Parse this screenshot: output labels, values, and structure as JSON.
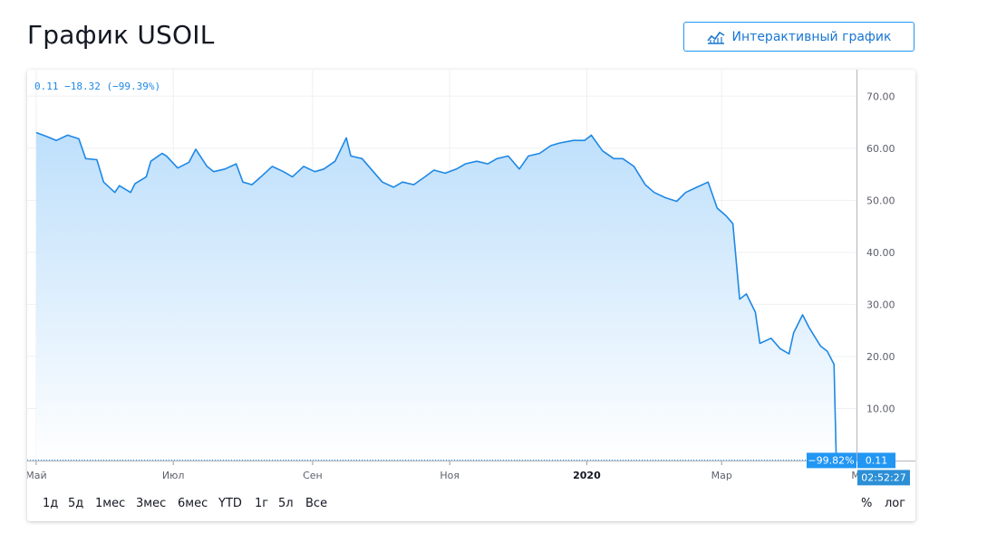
{
  "page": {
    "title": "График USOIL",
    "interactive_button": "Интерактивный график"
  },
  "chart_header": "0.11  −18.32 (−99.39%)",
  "range_buttons": [
    "1д",
    "5д",
    "1мес",
    "3мес",
    "6мес",
    "YTD",
    "1г",
    "5л",
    "Все"
  ],
  "toggles": [
    "%",
    "лог"
  ],
  "price_label": "0.11",
  "percent_label": "−99.82%",
  "time_label": "02:52:27",
  "colors": {
    "line": "#1e88e5",
    "accent": "#2196f3",
    "fill_top": "#bbdefb",
    "fill_bottom": "#ffffff"
  },
  "chart_data": {
    "type": "area",
    "title": "",
    "xlabel": "",
    "ylabel": "",
    "ylim": [
      0,
      73
    ],
    "y_ticks": [
      "70.00",
      "60.00",
      "50.00",
      "40.00",
      "30.00",
      "20.00",
      "10.00"
    ],
    "x_ticks": [
      "Май",
      "Июл",
      "Сен",
      "Ноя",
      "2020",
      "Мар",
      "Ма"
    ],
    "grid": true,
    "legend": "none",
    "last_value": 0.11,
    "series": [
      {
        "x": [
          "2019-05-01",
          "2019-05-06",
          "2019-05-10",
          "2019-05-15",
          "2019-05-20",
          "2019-05-23",
          "2019-05-28",
          "2019-05-31",
          "2019-06-05",
          "2019-06-07",
          "2019-06-12",
          "2019-06-14",
          "2019-06-19",
          "2019-06-21",
          "2019-06-26",
          "2019-06-28",
          "2019-07-03",
          "2019-07-08",
          "2019-07-11",
          "2019-07-16",
          "2019-07-19",
          "2019-07-24",
          "2019-07-29",
          "2019-08-01",
          "2019-08-05",
          "2019-08-09",
          "2019-08-14",
          "2019-08-19",
          "2019-08-23",
          "2019-08-28",
          "2019-09-02",
          "2019-09-06",
          "2019-09-11",
          "2019-09-16",
          "2019-09-18",
          "2019-09-23",
          "2019-09-27",
          "2019-10-02",
          "2019-10-07",
          "2019-10-11",
          "2019-10-16",
          "2019-10-21",
          "2019-10-25",
          "2019-10-30",
          "2019-11-04",
          "2019-11-08",
          "2019-11-13",
          "2019-11-18",
          "2019-11-22",
          "2019-11-27",
          "2019-12-02",
          "2019-12-06",
          "2019-12-11",
          "2019-12-16",
          "2019-12-20",
          "2019-12-26",
          "2019-12-31",
          "2020-01-03",
          "2020-01-08",
          "2020-01-13",
          "2020-01-17",
          "2020-01-22",
          "2020-01-27",
          "2020-01-31",
          "2020-02-05",
          "2020-02-10",
          "2020-02-14",
          "2020-02-19",
          "2020-02-24",
          "2020-02-28",
          "2020-03-03",
          "2020-03-06",
          "2020-03-09",
          "2020-03-12",
          "2020-03-16",
          "2020-03-18",
          "2020-03-23",
          "2020-03-27",
          "2020-03-31",
          "2020-04-02",
          "2020-04-06",
          "2020-04-09",
          "2020-04-14",
          "2020-04-17",
          "2020-04-20",
          "2020-04-21"
        ],
        "y": [
          63.0,
          62.2,
          61.5,
          62.5,
          61.8,
          58.0,
          57.8,
          53.5,
          51.5,
          52.8,
          51.5,
          53.2,
          54.5,
          57.5,
          59.0,
          58.5,
          56.2,
          57.3,
          59.8,
          56.5,
          55.5,
          56.0,
          57.0,
          53.5,
          53.0,
          54.5,
          56.5,
          55.5,
          54.5,
          56.5,
          55.5,
          56.0,
          57.5,
          62.0,
          58.5,
          58.0,
          56.0,
          53.5,
          52.5,
          53.5,
          53.0,
          54.5,
          55.8,
          55.2,
          56.0,
          57.0,
          57.5,
          57.0,
          58.0,
          58.5,
          56.0,
          58.5,
          59.0,
          60.5,
          61.0,
          61.5,
          61.5,
          62.5,
          59.5,
          58.0,
          58.0,
          56.5,
          53.0,
          51.5,
          50.5,
          49.8,
          51.5,
          52.5,
          53.5,
          48.5,
          47.0,
          45.5,
          31.0,
          32.0,
          28.5,
          22.5,
          23.5,
          21.5,
          20.5,
          24.5,
          28.0,
          25.5,
          22.0,
          21.0,
          18.5,
          0.11
        ]
      }
    ]
  }
}
